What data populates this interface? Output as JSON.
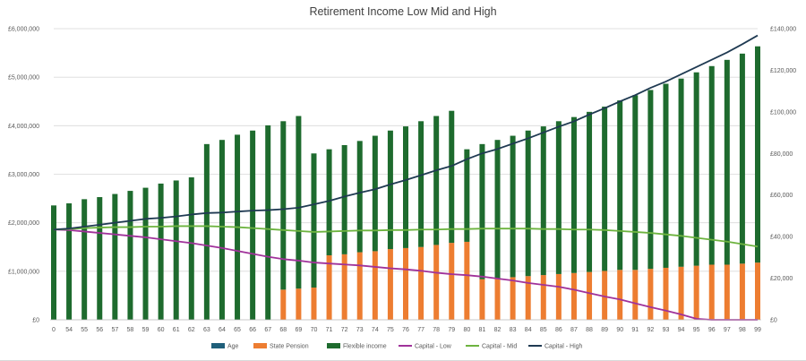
{
  "chart_data": {
    "type": "bar",
    "title": "Retirement  Income Low Mid and High",
    "xlabel": "",
    "ylabel": "",
    "categories": [
      "0",
      "54",
      "55",
      "56",
      "57",
      "58",
      "59",
      "60",
      "61",
      "62",
      "63",
      "64",
      "65",
      "66",
      "67",
      "68",
      "69",
      "70",
      "71",
      "72",
      "73",
      "74",
      "75",
      "76",
      "77",
      "78",
      "79",
      "80",
      "81",
      "82",
      "83",
      "84",
      "85",
      "86",
      "87",
      "88",
      "89",
      "90",
      "91",
      "92",
      "93",
      "94",
      "95",
      "96",
      "97",
      "98",
      "99"
    ],
    "y_left": {
      "min": 0,
      "max": 6000000,
      "step": 1000000,
      "tick_labels": [
        "£0",
        "£1,000,000",
        "£2,000,000",
        "£3,000,000",
        "£4,000,000",
        "£5,000,000",
        "£6,000,000"
      ]
    },
    "y_right": {
      "min": 0,
      "max": 140000,
      "step": 20000,
      "tick_labels": [
        "£0",
        "£20,000",
        "£40,000",
        "£60,000",
        "£80,000",
        "£100,000",
        "£120,000",
        "£140,000"
      ]
    },
    "grid": true,
    "legend_position": "bottom",
    "series": [
      {
        "name": "Age",
        "kind": "bar",
        "axis": "left",
        "color": "#1f5f7a",
        "values": [
          0,
          54,
          55,
          56,
          57,
          58,
          59,
          60,
          61,
          62,
          63,
          64,
          65,
          66,
          67,
          68,
          69,
          70,
          71,
          72,
          73,
          74,
          75,
          76,
          77,
          78,
          79,
          80,
          81,
          82,
          83,
          84,
          85,
          86,
          87,
          88,
          89,
          90,
          91,
          92,
          93,
          94,
          95,
          96,
          97,
          98,
          99
        ]
      },
      {
        "name": "State Pension",
        "kind": "stacked-bar",
        "axis": "right",
        "color": "#ed7d31",
        "values": [
          0,
          0,
          0,
          0,
          0,
          0,
          0,
          0,
          0,
          0,
          0,
          0,
          0,
          0,
          0,
          14500,
          15000,
          15500,
          31000,
          31500,
          32500,
          33000,
          34000,
          34500,
          35000,
          36000,
          37000,
          37500,
          19500,
          20000,
          20500,
          21000,
          21500,
          22000,
          22500,
          23000,
          23500,
          24000,
          24000,
          24500,
          25000,
          25500,
          26000,
          26500,
          26500,
          27000,
          27500
        ]
      },
      {
        "name": "Flexible income",
        "kind": "stacked-bar",
        "axis": "right",
        "color": "#1e6b2e",
        "values": [
          55000,
          56000,
          58000,
          59000,
          60500,
          62000,
          63500,
          65500,
          67000,
          68500,
          84500,
          86500,
          89000,
          91000,
          93500,
          81000,
          83000,
          64500,
          51000,
          52500,
          53500,
          55500,
          57000,
          58500,
          60500,
          62000,
          63500,
          44500,
          65000,
          66500,
          68000,
          70000,
          71500,
          73500,
          75000,
          77000,
          79000,
          81500,
          84000,
          86000,
          88500,
          90500,
          93000,
          95500,
          98500,
          101000,
          104000
        ]
      },
      {
        "name": "Capital - Low",
        "kind": "line",
        "axis": "left",
        "color": "#a0329a",
        "values": [
          1860000,
          1850000,
          1820000,
          1790000,
          1760000,
          1730000,
          1700000,
          1660000,
          1620000,
          1580000,
          1530000,
          1480000,
          1420000,
          1360000,
          1300000,
          1250000,
          1220000,
          1180000,
          1160000,
          1140000,
          1120000,
          1090000,
          1060000,
          1040000,
          1010000,
          970000,
          940000,
          920000,
          890000,
          850000,
          810000,
          760000,
          720000,
          680000,
          620000,
          550000,
          480000,
          420000,
          340000,
          260000,
          190000,
          110000,
          20000,
          0,
          0,
          0,
          0
        ]
      },
      {
        "name": "Capital - Mid",
        "kind": "line",
        "axis": "left",
        "color": "#6db33f",
        "values": [
          1860000,
          1870000,
          1890000,
          1900000,
          1910000,
          1910000,
          1920000,
          1920000,
          1930000,
          1930000,
          1930000,
          1920000,
          1910000,
          1890000,
          1870000,
          1850000,
          1830000,
          1810000,
          1820000,
          1830000,
          1840000,
          1840000,
          1850000,
          1850000,
          1860000,
          1860000,
          1870000,
          1870000,
          1880000,
          1880000,
          1880000,
          1880000,
          1870000,
          1870000,
          1860000,
          1860000,
          1850000,
          1830000,
          1810000,
          1790000,
          1760000,
          1730000,
          1690000,
          1650000,
          1610000,
          1560000,
          1510000
        ]
      },
      {
        "name": "Capital - High",
        "kind": "line",
        "axis": "left",
        "color": "#1f3a52",
        "values": [
          1860000,
          1880000,
          1920000,
          1960000,
          2000000,
          2040000,
          2080000,
          2100000,
          2130000,
          2170000,
          2200000,
          2210000,
          2230000,
          2250000,
          2260000,
          2280000,
          2310000,
          2380000,
          2450000,
          2540000,
          2620000,
          2690000,
          2790000,
          2880000,
          2980000,
          3080000,
          3170000,
          3310000,
          3430000,
          3520000,
          3630000,
          3740000,
          3860000,
          3980000,
          4090000,
          4230000,
          4360000,
          4500000,
          4630000,
          4780000,
          4910000,
          5060000,
          5210000,
          5360000,
          5510000,
          5680000,
          5860000
        ]
      }
    ]
  }
}
